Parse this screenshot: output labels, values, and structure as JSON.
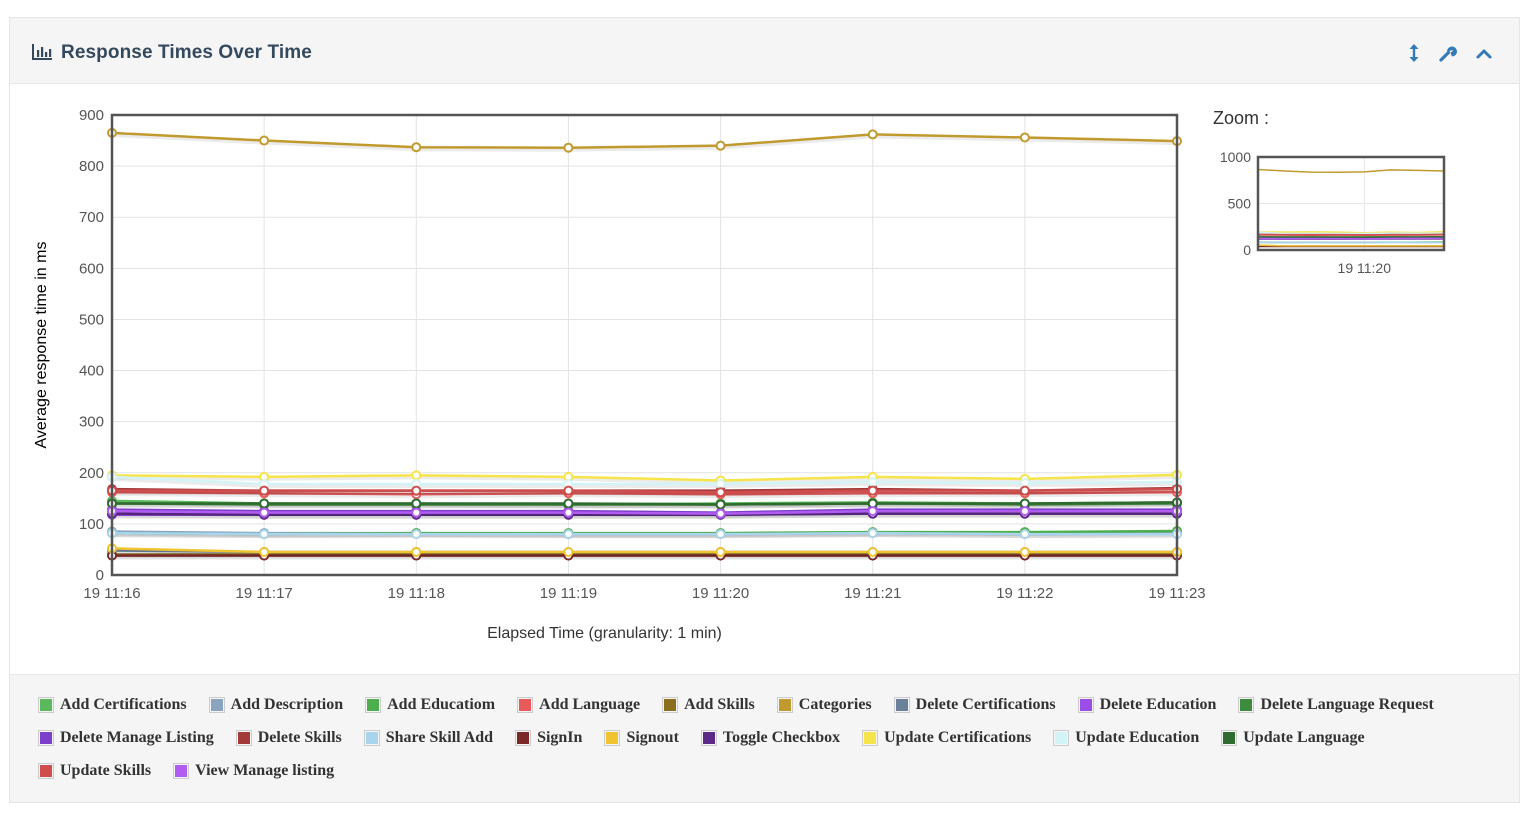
{
  "panel": {
    "title": "Response Times Over Time",
    "tools": [
      "resize-vertical-icon",
      "wrench-icon",
      "chevron-up-icon"
    ]
  },
  "zoom": {
    "label": "Zoom :",
    "y_ticks": [
      0,
      500,
      1000
    ],
    "x_tick": "19 11:20"
  },
  "chart_data": {
    "type": "line",
    "title": "",
    "xlabel": "Elapsed Time (granularity: 1 min)",
    "ylabel": "Average response time in ms",
    "x": [
      "19 11:16",
      "19 11:17",
      "19 11:18",
      "19 11:19",
      "19 11:20",
      "19 11:21",
      "19 11:22",
      "19 11:23"
    ],
    "ylim": [
      0,
      900
    ],
    "y_ticks": [
      0,
      100,
      200,
      300,
      400,
      500,
      600,
      700,
      800,
      900
    ],
    "grid": true,
    "legend_position": "bottom",
    "series": [
      {
        "name": "Add Certifications",
        "color": "#5cb85c",
        "values": [
          145,
          140,
          140,
          138,
          140,
          142,
          140,
          142
        ]
      },
      {
        "name": "Add Description",
        "color": "#8aa4c0",
        "values": [
          85,
          82,
          82,
          80,
          80,
          82,
          80,
          82
        ]
      },
      {
        "name": "Add Educatiom",
        "color": "#4cae4c",
        "values": [
          82,
          80,
          82,
          82,
          82,
          84,
          84,
          86
        ]
      },
      {
        "name": "Add Language",
        "color": "#e95b5b",
        "values": [
          162,
          160,
          158,
          160,
          158,
          160,
          160,
          162
        ]
      },
      {
        "name": "Add Skills",
        "color": "#8b6f1d",
        "values": [
          40,
          40,
          40,
          40,
          40,
          40,
          40,
          40
        ]
      },
      {
        "name": "Categories",
        "color": "#c19a2f",
        "values": [
          865,
          850,
          837,
          836,
          840,
          862,
          856,
          849
        ]
      },
      {
        "name": "Delete Certifications",
        "color": "#6b8199",
        "values": [
          48,
          45,
          45,
          45,
          45,
          45,
          45,
          45
        ]
      },
      {
        "name": "Delete Education",
        "color": "#9b4de8",
        "values": [
          118,
          118,
          118,
          118,
          118,
          120,
          120,
          120
        ]
      },
      {
        "name": "Delete Language Request",
        "color": "#3d8b3d",
        "values": [
          140,
          138,
          138,
          138,
          138,
          140,
          138,
          140
        ]
      },
      {
        "name": "Delete Manage Listing",
        "color": "#7b3fc9",
        "values": [
          128,
          125,
          125,
          125,
          122,
          128,
          128,
          128
        ]
      },
      {
        "name": "Delete Skills",
        "color": "#a33a3a",
        "values": [
          168,
          165,
          165,
          165,
          165,
          168,
          165,
          170
        ]
      },
      {
        "name": "Share Skill Add",
        "color": "#a9d4ee",
        "values": [
          82,
          80,
          80,
          80,
          80,
          82,
          80,
          80
        ]
      },
      {
        "name": "SignIn",
        "color": "#7a2828",
        "values": [
          38,
          38,
          38,
          38,
          38,
          38,
          38,
          38
        ]
      },
      {
        "name": "Signout",
        "color": "#f0c330",
        "values": [
          52,
          45,
          45,
          45,
          45,
          45,
          45,
          45
        ]
      },
      {
        "name": "Toggle Checkbox",
        "color": "#5b2a86",
        "values": [
          120,
          118,
          118,
          118,
          118,
          120,
          120,
          120
        ]
      },
      {
        "name": "Update Certifications",
        "color": "#f6e44b",
        "values": [
          195,
          192,
          195,
          192,
          185,
          192,
          188,
          196
        ]
      },
      {
        "name": "Update Education",
        "color": "#d2f4f7",
        "values": [
          192,
          178,
          178,
          178,
          178,
          182,
          180,
          182
        ]
      },
      {
        "name": "Update Language",
        "color": "#2e6b2e",
        "values": [
          140,
          140,
          140,
          140,
          138,
          140,
          140,
          142
        ]
      },
      {
        "name": "Update Skills",
        "color": "#cf4d4d",
        "values": [
          165,
          165,
          165,
          165,
          162,
          165,
          165,
          168
        ]
      },
      {
        "name": "View Manage listing",
        "color": "#b15cf0",
        "values": [
          125,
          122,
          122,
          122,
          120,
          125,
          125,
          125
        ]
      }
    ]
  }
}
